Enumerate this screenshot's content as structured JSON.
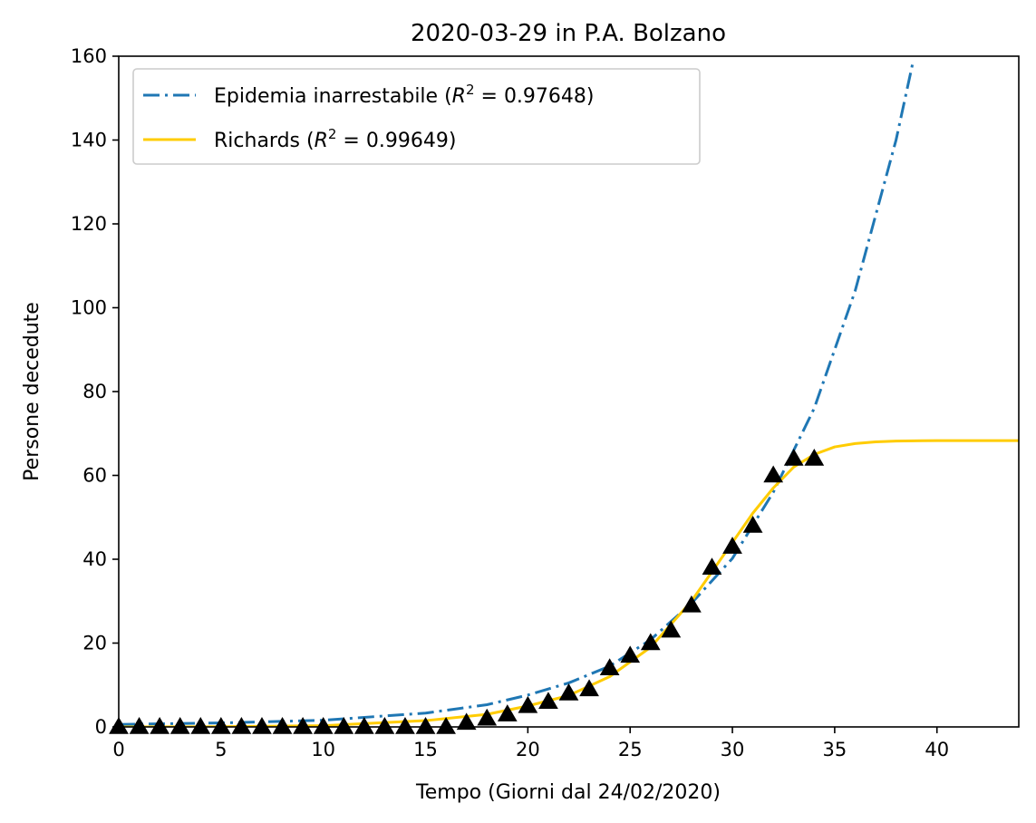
{
  "chart_data": {
    "type": "line",
    "title": "2020-03-29 in P.A. Bolzano",
    "xlabel": "Tempo (Giorni dal 24/02/2020)",
    "ylabel": "Persone decedute",
    "xlim": [
      0,
      44
    ],
    "ylim": [
      0,
      160
    ],
    "xticks": [
      0,
      5,
      10,
      15,
      20,
      25,
      30,
      35,
      40
    ],
    "yticks": [
      0,
      20,
      40,
      60,
      80,
      100,
      120,
      140,
      160
    ],
    "grid": false,
    "legend_position": "top-left",
    "series": [
      {
        "name_prefix": "Epidemia inarrestabile (",
        "r2_label": "R",
        "r2_value": "0.97648",
        "name_suffix": ")",
        "kind": "exponential-fit",
        "style": "dashdot",
        "color": "#1f77b4",
        "x": [
          0,
          5,
          10,
          15,
          18,
          20,
          22,
          24,
          26,
          28,
          30,
          32,
          33,
          34,
          36,
          38,
          38.8
        ],
        "y": [
          0.6,
          0.95,
          1.6,
          3.3,
          5.3,
          7.6,
          10.5,
          14.5,
          20.8,
          29.5,
          40.2,
          56,
          66,
          76,
          104,
          140,
          158
        ]
      },
      {
        "name_prefix": "Richards (",
        "r2_label": "R",
        "r2_value": "0.99649",
        "name_suffix": ")",
        "kind": "richards-fit",
        "style": "solid",
        "color": "#ffcc00",
        "x": [
          0,
          5,
          10,
          15,
          18,
          20,
          22,
          24,
          26,
          28,
          29,
          30,
          31,
          32,
          33,
          34,
          35,
          36,
          37,
          38,
          40,
          44
        ],
        "y": [
          0,
          0.05,
          0.3,
          1.5,
          3,
          5,
          7.5,
          12,
          19,
          30,
          37,
          44,
          51,
          57,
          62,
          65,
          66.8,
          67.6,
          68,
          68.2,
          68.3,
          68.3
        ]
      }
    ],
    "observed": {
      "marker": "triangle",
      "color": "#000000",
      "x": [
        0,
        1,
        2,
        3,
        4,
        5,
        6,
        7,
        8,
        9,
        10,
        11,
        12,
        13,
        14,
        15,
        16,
        17,
        18,
        19,
        20,
        21,
        22,
        23,
        24,
        25,
        26,
        27,
        28,
        29,
        30,
        31,
        32,
        33,
        34
      ],
      "y": [
        0,
        0,
        0,
        0,
        0,
        0,
        0,
        0,
        0,
        0,
        0,
        0,
        0,
        0,
        0,
        0,
        0,
        1,
        2,
        3,
        5,
        6,
        8,
        9,
        14,
        17,
        20,
        23,
        29,
        38,
        43,
        48,
        60,
        64,
        64
      ]
    }
  }
}
